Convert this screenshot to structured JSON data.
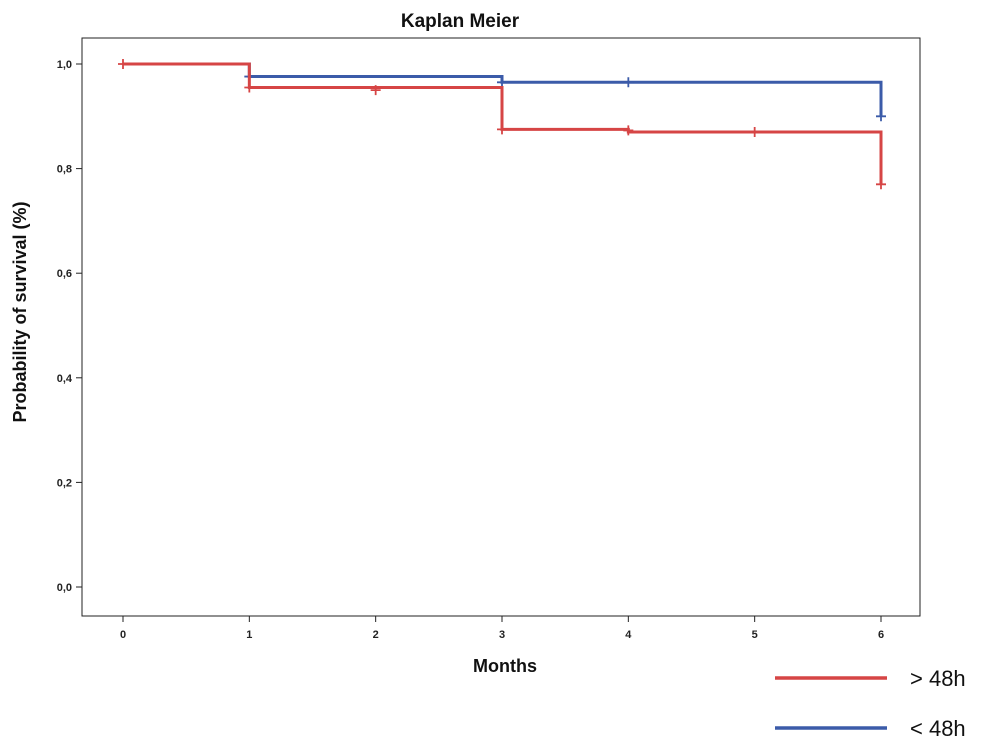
{
  "chart_data": {
    "type": "line",
    "title": "Kaplan Meier",
    "xlabel": "Months",
    "ylabel": "Probability of survival (%)",
    "xlim": [
      0,
      6
    ],
    "ylim": [
      0,
      1
    ],
    "x_ticks": [
      "0",
      "1",
      "2",
      "3",
      "4",
      "5",
      "6"
    ],
    "y_ticks": [
      "0,0",
      "0,2",
      "0,4",
      "0,6",
      "0,8",
      "1,0"
    ],
    "grid": false,
    "legend": "bottom-right",
    "series": [
      {
        "name": "> 48h",
        "color": "#d64545",
        "steps": [
          {
            "x": 0,
            "y": 1.0
          },
          {
            "x": 1,
            "y": 0.955
          },
          {
            "x": 3,
            "y": 0.875
          },
          {
            "x": 4,
            "y": 0.87
          },
          {
            "x": 6,
            "y": 0.77
          }
        ],
        "censored": [
          {
            "x": 0,
            "y": 1.0
          },
          {
            "x": 1,
            "y": 0.955
          },
          {
            "x": 2,
            "y": 0.95
          },
          {
            "x": 3,
            "y": 0.875
          },
          {
            "x": 4,
            "y": 0.873
          },
          {
            "x": 5,
            "y": 0.87
          },
          {
            "x": 6,
            "y": 0.77
          }
        ]
      },
      {
        "name": "< 48h",
        "color": "#3b5ba9",
        "steps": [
          {
            "x": 0,
            "y": 1.0
          },
          {
            "x": 1,
            "y": 0.976
          },
          {
            "x": 3,
            "y": 0.965
          },
          {
            "x": 6,
            "y": 0.9
          }
        ],
        "censored": [
          {
            "x": 1,
            "y": 0.976
          },
          {
            "x": 3,
            "y": 0.965
          },
          {
            "x": 4,
            "y": 0.965
          },
          {
            "x": 6,
            "y": 0.9
          }
        ]
      }
    ]
  }
}
